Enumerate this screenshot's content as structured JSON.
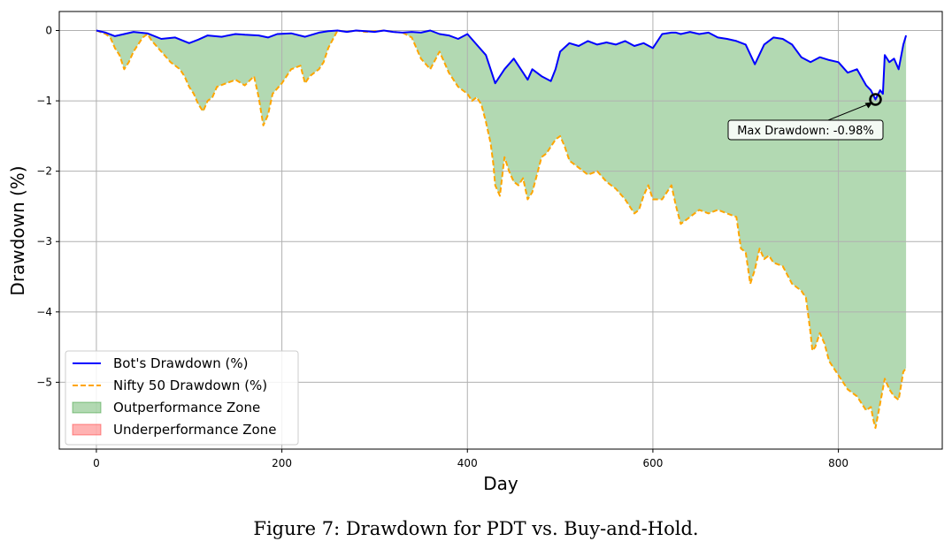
{
  "chart_data": {
    "type": "line",
    "title": "",
    "xlabel": "Day",
    "ylabel": "Drawdown (%)",
    "xlim": [
      -40,
      912
    ],
    "ylim": [
      -5.95,
      0.27
    ],
    "xticks": [
      0,
      200,
      400,
      600,
      800
    ],
    "xtick_labels": [
      "0",
      "200",
      "400",
      "600",
      "800"
    ],
    "yticks": [
      0,
      -1,
      -2,
      -3,
      -4,
      -5
    ],
    "ytick_labels": [
      "0",
      "−1",
      "−2",
      "−3",
      "−4",
      "−5"
    ],
    "grid": true,
    "legend_position": "lower-left",
    "series": [
      {
        "name": "Bot's Drawdown (%)",
        "color": "#0000ff",
        "style": "solid",
        "x": [
          0,
          10,
          20,
          30,
          40,
          55,
          70,
          85,
          100,
          110,
          120,
          135,
          150,
          160,
          175,
          185,
          195,
          210,
          225,
          240,
          250,
          260,
          270,
          280,
          290,
          300,
          310,
          320,
          330,
          340,
          350,
          360,
          370,
          380,
          390,
          400,
          410,
          420,
          425,
          430,
          440,
          450,
          460,
          465,
          470,
          480,
          490,
          495,
          500,
          510,
          520,
          530,
          540,
          550,
          560,
          570,
          580,
          590,
          600,
          610,
          620,
          625,
          630,
          640,
          650,
          660,
          670,
          680,
          690,
          700,
          710,
          720,
          730,
          740,
          750,
          760,
          770,
          780,
          790,
          800,
          810,
          820,
          830,
          835,
          840,
          845,
          848,
          850,
          855,
          860,
          865,
          870,
          873
        ],
        "values": [
          0,
          -0.03,
          -0.08,
          -0.05,
          -0.02,
          -0.04,
          -0.12,
          -0.1,
          -0.18,
          -0.13,
          -0.07,
          -0.09,
          -0.05,
          -0.06,
          -0.07,
          -0.1,
          -0.05,
          -0.04,
          -0.09,
          -0.03,
          -0.01,
          0,
          -0.02,
          0,
          -0.01,
          -0.02,
          0,
          -0.02,
          -0.03,
          -0.02,
          -0.03,
          0,
          -0.05,
          -0.07,
          -0.12,
          -0.05,
          -0.2,
          -0.35,
          -0.55,
          -0.75,
          -0.55,
          -0.4,
          -0.6,
          -0.7,
          -0.55,
          -0.65,
          -0.72,
          -0.55,
          -0.3,
          -0.18,
          -0.22,
          -0.15,
          -0.2,
          -0.17,
          -0.2,
          -0.15,
          -0.22,
          -0.18,
          -0.25,
          -0.05,
          -0.03,
          -0.03,
          -0.05,
          -0.02,
          -0.05,
          -0.03,
          -0.1,
          -0.12,
          -0.15,
          -0.2,
          -0.48,
          -0.2,
          -0.1,
          -0.12,
          -0.2,
          -0.38,
          -0.45,
          -0.38,
          -0.42,
          -0.45,
          -0.6,
          -0.55,
          -0.78,
          -0.85,
          -0.98,
          -0.85,
          -0.9,
          -0.35,
          -0.45,
          -0.4,
          -0.55,
          -0.2,
          -0.07
        ]
      },
      {
        "name": "Nifty 50 Drawdown (%)",
        "color": "#ffa500",
        "style": "dashed",
        "x": [
          0,
          10,
          15,
          20,
          25,
          30,
          35,
          40,
          45,
          50,
          55,
          60,
          70,
          80,
          90,
          95,
          100,
          105,
          110,
          115,
          120,
          125,
          130,
          140,
          150,
          160,
          170,
          175,
          180,
          185,
          190,
          200,
          210,
          220,
          225,
          230,
          240,
          245,
          250,
          260,
          270,
          280,
          290,
          300,
          310,
          320,
          330,
          340,
          350,
          360,
          370,
          375,
          380,
          390,
          400,
          405,
          410,
          415,
          420,
          425,
          428,
          430,
          435,
          440,
          445,
          450,
          455,
          460,
          465,
          470,
          475,
          480,
          485,
          490,
          495,
          500,
          505,
          510,
          515,
          520,
          530,
          540,
          550,
          560,
          570,
          575,
          580,
          585,
          590,
          595,
          600,
          610,
          620,
          625,
          630,
          640,
          650,
          660,
          670,
          680,
          690,
          695,
          700,
          705,
          710,
          715,
          720,
          725,
          730,
          740,
          750,
          760,
          765,
          770,
          772,
          775,
          780,
          785,
          790,
          800,
          810,
          820,
          825,
          830,
          835,
          838,
          840,
          845,
          850,
          855,
          860,
          865,
          870,
          873
        ],
        "values": [
          0,
          -0.05,
          -0.1,
          -0.25,
          -0.35,
          -0.55,
          -0.45,
          -0.3,
          -0.2,
          -0.1,
          -0.05,
          -0.15,
          -0.3,
          -0.45,
          -0.55,
          -0.65,
          -0.8,
          -0.9,
          -1.05,
          -1.15,
          -1.0,
          -0.95,
          -0.8,
          -0.75,
          -0.7,
          -0.78,
          -0.65,
          -0.95,
          -1.35,
          -1.2,
          -0.9,
          -0.75,
          -0.55,
          -0.5,
          -0.75,
          -0.65,
          -0.55,
          -0.45,
          -0.25,
          0,
          -0.02,
          0,
          -0.02,
          -0.01,
          0,
          -0.02,
          -0.03,
          -0.1,
          -0.4,
          -0.55,
          -0.3,
          -0.45,
          -0.6,
          -0.8,
          -0.9,
          -1.0,
          -0.95,
          -1.05,
          -1.3,
          -1.6,
          -1.9,
          -2.2,
          -2.35,
          -1.8,
          -2.0,
          -2.15,
          -2.2,
          -2.1,
          -2.4,
          -2.3,
          -2.05,
          -1.8,
          -1.75,
          -1.65,
          -1.55,
          -1.5,
          -1.65,
          -1.85,
          -1.9,
          -1.95,
          -2.05,
          -2.0,
          -2.15,
          -2.25,
          -2.4,
          -2.5,
          -2.6,
          -2.55,
          -2.35,
          -2.2,
          -2.4,
          -2.4,
          -2.2,
          -2.5,
          -2.75,
          -2.65,
          -2.55,
          -2.6,
          -2.55,
          -2.6,
          -2.65,
          -3.1,
          -3.15,
          -3.6,
          -3.4,
          -3.1,
          -3.25,
          -3.2,
          -3.3,
          -3.35,
          -3.6,
          -3.7,
          -3.8,
          -4.3,
          -4.55,
          -4.5,
          -4.3,
          -4.45,
          -4.7,
          -4.9,
          -5.1,
          -5.2,
          -5.3,
          -5.4,
          -5.35,
          -5.55,
          -5.65,
          -5.3,
          -4.95,
          -5.1,
          -5.2,
          -5.25,
          -4.85,
          -4.8
        ]
      }
    ],
    "fill_legend": [
      {
        "name": "Outperformance Zone",
        "color": "#008000",
        "alpha": 0.3
      },
      {
        "name": "Underperformance Zone",
        "color": "#ff0000",
        "alpha": 0.3
      }
    ],
    "annotations": [
      {
        "text": "Max Drawdown: -0.98%",
        "point_x": 840,
        "point_y": -0.98
      }
    ]
  },
  "caption": "Figure 7: Drawdown for PDT vs. Buy-and-Hold."
}
